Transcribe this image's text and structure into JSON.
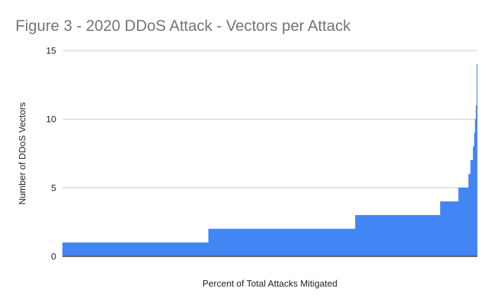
{
  "chart_data": {
    "type": "area",
    "title": "Figure 3 - 2020 DDoS Attack - Vectors per Attack",
    "xlabel": "Percent of Total Attacks Mitigated",
    "ylabel": "Number of DDoS Vectors",
    "xlim": [
      0,
      100
    ],
    "ylim": [
      0,
      15
    ],
    "yticks": [
      "0",
      "5",
      "10",
      "15"
    ],
    "grid": true,
    "series": [
      {
        "values_by_range": [
          {
            "x_start": 0,
            "x_end": 35.2,
            "y": 1
          },
          {
            "x_start": 35.2,
            "x_end": 70.6,
            "y": 2
          },
          {
            "x_start": 70.6,
            "x_end": 91.1,
            "y": 3
          },
          {
            "x_start": 91.1,
            "x_end": 95.5,
            "y": 4
          },
          {
            "x_start": 95.5,
            "x_end": 97.9,
            "y": 5
          },
          {
            "x_start": 97.9,
            "x_end": 98.4,
            "y": 6
          },
          {
            "x_start": 98.4,
            "x_end": 99.0,
            "y": 7
          },
          {
            "x_start": 99.0,
            "x_end": 99.3,
            "y": 8
          },
          {
            "x_start": 99.3,
            "x_end": 99.5,
            "y": 9
          },
          {
            "x_start": 99.5,
            "x_end": 99.7,
            "y": 10
          },
          {
            "x_start": 99.7,
            "x_end": 99.9,
            "y": 11
          },
          {
            "x_start": 99.9,
            "x_end": 100,
            "y": 14
          }
        ]
      }
    ],
    "colors": {
      "fill": "#4285f4",
      "grid": "#cccccc",
      "axis": "#333333",
      "title": "#757575",
      "text": "#222222"
    }
  }
}
